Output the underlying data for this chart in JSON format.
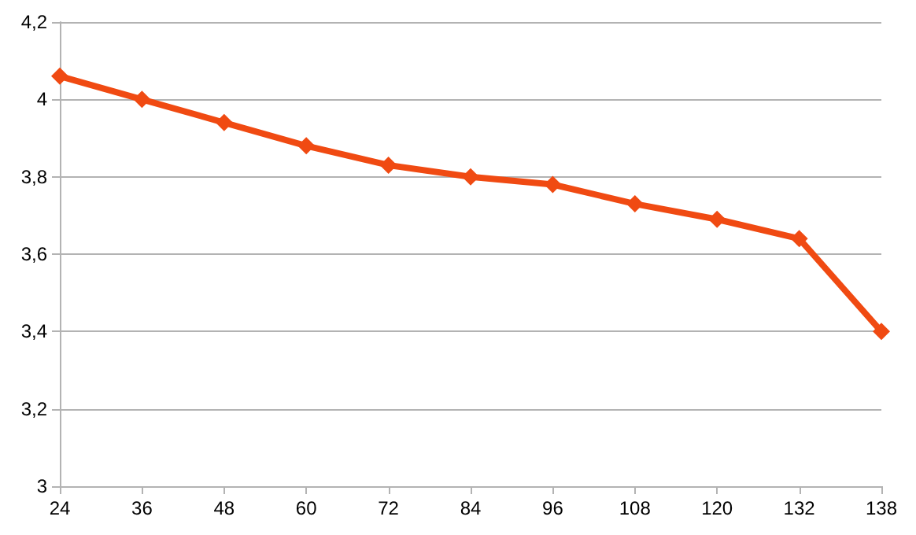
{
  "chart_data": {
    "type": "line",
    "categories": [
      "24",
      "36",
      "48",
      "60",
      "72",
      "84",
      "96",
      "108",
      "120",
      "132",
      "138"
    ],
    "series": [
      {
        "color": "#f04a12",
        "values": [
          4.06,
          4.0,
          3.94,
          3.88,
          3.83,
          3.8,
          3.78,
          3.73,
          3.69,
          3.64,
          3.4
        ]
      }
    ],
    "ylim": [
      3,
      4.2
    ],
    "yticks": [
      {
        "value": 3,
        "label": "3"
      },
      {
        "value": 3.2,
        "label": "3,2"
      },
      {
        "value": 3.4,
        "label": "3,4"
      },
      {
        "value": 3.6,
        "label": "3,6"
      },
      {
        "value": 3.8,
        "label": "3,8"
      },
      {
        "value": 4,
        "label": "4"
      },
      {
        "value": 4.2,
        "label": "4,2"
      }
    ],
    "grid": "y",
    "marker": "diamond",
    "line_style": "solid"
  }
}
